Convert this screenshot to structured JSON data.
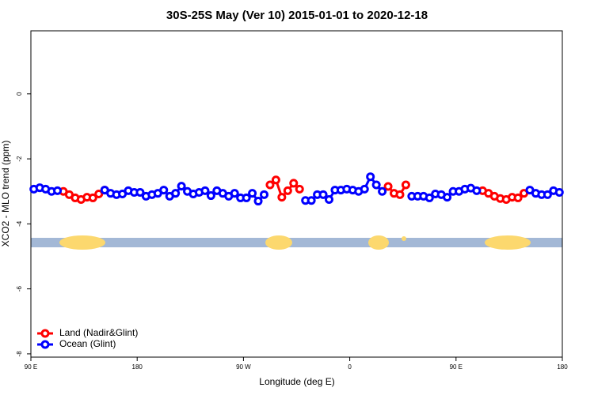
{
  "chart_data": {
    "type": "line",
    "title": "30S-25S May (Ver 10)   2015-01-01 to 2020-12-18",
    "x_label": "Longitude (deg E)",
    "y_label": "XCO2 - MLO trend (ppm)",
    "xlim": [
      90,
      540
    ],
    "xticks": [
      {
        "value": 90,
        "label": "90 E"
      },
      {
        "value": 180,
        "label": "180"
      },
      {
        "value": 270,
        "label": "90 W"
      },
      {
        "value": 360,
        "label": "0"
      },
      {
        "value": 450,
        "label": "90 E"
      },
      {
        "value": 540,
        "label": "180"
      }
    ],
    "ylim": [
      -8.1,
      1.94
    ],
    "yticks": [
      0,
      -2,
      -4,
      -6,
      -8
    ],
    "legend": "bottom-left",
    "x": [
      92.5,
      97.5,
      102.5,
      107.5,
      112.5,
      117.5,
      122.5,
      127.5,
      132.5,
      137.5,
      142.5,
      147.5,
      152.5,
      157.5,
      162.5,
      167.5,
      172.5,
      177.5,
      182.5,
      187.5,
      192.5,
      197.5,
      202.5,
      207.5,
      212.5,
      217.5,
      222.5,
      227.5,
      232.5,
      237.5,
      242.5,
      247.5,
      252.5,
      257.5,
      262.5,
      267.5,
      272.5,
      277.5,
      282.5,
      287.5,
      292.5,
      297.5,
      302.5,
      307.5,
      312.5,
      317.5,
      322.5,
      327.5,
      332.5,
      337.5,
      342.5,
      347.5,
      352.5,
      357.5,
      362.5,
      367.5,
      372.5,
      377.5,
      382.5,
      387.5,
      392.5,
      397.5,
      402.5,
      407.5,
      412.5,
      417.5,
      422.5,
      427.5,
      432.5,
      437.5,
      442.5,
      447.5,
      452.5,
      457.5,
      462.5,
      467.5,
      472.5,
      477.5,
      482.5,
      487.5,
      492.5,
      497.5,
      502.5,
      507.5,
      512.5,
      517.5,
      522.5,
      527.5,
      532.5,
      537.5
    ],
    "series": [
      {
        "name": "Land (Nadir&Glint)",
        "color": "#ff0000",
        "values": [
          null,
          null,
          null,
          null,
          null,
          -3.0,
          -3.1,
          -3.2,
          -3.25,
          -3.18,
          -3.2,
          -3.08,
          -2.96,
          null,
          null,
          null,
          null,
          null,
          null,
          null,
          null,
          null,
          null,
          null,
          null,
          null,
          null,
          null,
          null,
          null,
          null,
          null,
          null,
          null,
          null,
          null,
          null,
          null,
          null,
          null,
          -2.8,
          -2.65,
          -3.18,
          -2.98,
          -2.75,
          -2.93,
          null,
          null,
          null,
          null,
          null,
          null,
          null,
          null,
          null,
          null,
          null,
          null,
          null,
          null,
          -2.85,
          -3.06,
          -3.1,
          -2.8,
          null,
          null,
          null,
          null,
          null,
          null,
          null,
          null,
          null,
          null,
          null,
          null,
          -2.98,
          -3.06,
          -3.15,
          -3.22,
          -3.25,
          -3.18,
          -3.2,
          -3.06,
          null,
          null,
          null,
          null,
          null,
          null
        ]
      },
      {
        "name": "Ocean (Glint)",
        "color": "#0000ff",
        "values": [
          -2.93,
          -2.89,
          -2.93,
          -3.0,
          -2.98,
          null,
          null,
          null,
          null,
          null,
          null,
          null,
          -2.96,
          -3.06,
          -3.1,
          -3.08,
          -2.98,
          -3.03,
          -3.03,
          -3.15,
          -3.1,
          -3.06,
          -2.96,
          -3.15,
          -3.06,
          -2.84,
          -3.0,
          -3.08,
          -3.03,
          -2.98,
          -3.13,
          -2.98,
          -3.06,
          -3.15,
          -3.06,
          -3.2,
          -3.2,
          -3.06,
          -3.3,
          -3.1,
          null,
          null,
          null,
          null,
          null,
          null,
          -3.28,
          -3.28,
          -3.1,
          -3.1,
          -3.25,
          -2.96,
          -2.96,
          -2.93,
          -2.96,
          -3.0,
          -2.93,
          -2.55,
          -2.8,
          -3.0,
          null,
          null,
          null,
          null,
          -3.15,
          -3.15,
          -3.15,
          -3.2,
          -3.08,
          -3.1,
          -3.18,
          -3.0,
          -3.0,
          -2.93,
          -2.9,
          -2.98,
          null,
          null,
          null,
          null,
          null,
          null,
          null,
          null,
          -2.96,
          -3.06,
          -3.1,
          -3.1,
          -2.98,
          -3.03
        ]
      }
    ]
  }
}
